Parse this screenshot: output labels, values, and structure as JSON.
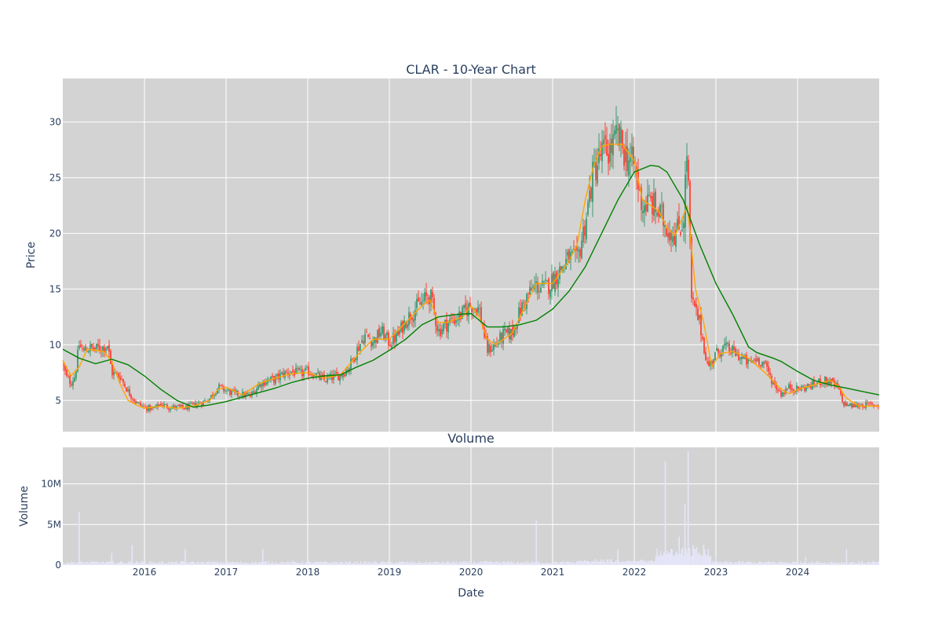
{
  "chart_data": [
    {
      "type": "candlestick",
      "title": "CLAR - 10-Year Chart",
      "ylabel": "Price",
      "ylim": [
        2.2,
        33.9
      ],
      "yticks": [
        5,
        10,
        15,
        20,
        25,
        30
      ],
      "grid": true,
      "legend": "none",
      "up_color": "#3d9970",
      "down_color": "#ff4136",
      "series": [
        {
          "type": "candlestick",
          "approx_close": [
            [
              2015.0,
              8.2
            ],
            [
              2015.05,
              7.0
            ],
            [
              2015.1,
              6.6
            ],
            [
              2015.15,
              7.2
            ],
            [
              2015.2,
              10.0
            ],
            [
              2015.25,
              9.4
            ],
            [
              2015.3,
              9.7
            ],
            [
              2015.4,
              9.6
            ],
            [
              2015.5,
              9.8
            ],
            [
              2015.55,
              10.0
            ],
            [
              2015.6,
              7.5
            ],
            [
              2015.7,
              7.2
            ],
            [
              2015.8,
              5.8
            ],
            [
              2015.9,
              4.8
            ],
            [
              2016.0,
              4.4
            ],
            [
              2016.1,
              4.2
            ],
            [
              2016.2,
              4.7
            ],
            [
              2016.3,
              4.4
            ],
            [
              2016.4,
              4.4
            ],
            [
              2016.5,
              4.3
            ],
            [
              2016.6,
              4.6
            ],
            [
              2016.7,
              4.8
            ],
            [
              2016.8,
              5.2
            ],
            [
              2016.9,
              6.2
            ],
            [
              2017.0,
              5.9
            ],
            [
              2017.1,
              5.6
            ],
            [
              2017.2,
              5.5
            ],
            [
              2017.3,
              5.4
            ],
            [
              2017.4,
              6.4
            ],
            [
              2017.5,
              6.8
            ],
            [
              2017.6,
              6.9
            ],
            [
              2017.7,
              7.4
            ],
            [
              2017.8,
              7.6
            ],
            [
              2017.9,
              7.4
            ],
            [
              2018.0,
              7.6
            ],
            [
              2018.1,
              7.3
            ],
            [
              2018.2,
              6.8
            ],
            [
              2018.3,
              7.1
            ],
            [
              2018.4,
              7.3
            ],
            [
              2018.5,
              7.9
            ],
            [
              2018.6,
              9.5
            ],
            [
              2018.7,
              10.9
            ],
            [
              2018.8,
              10.3
            ],
            [
              2018.9,
              11.2
            ],
            [
              2019.0,
              10.2
            ],
            [
              2019.1,
              10.8
            ],
            [
              2019.2,
              12.2
            ],
            [
              2019.3,
              13.1
            ],
            [
              2019.4,
              13.8
            ],
            [
              2019.5,
              14.5
            ],
            [
              2019.6,
              11.2
            ],
            [
              2019.7,
              11.9
            ],
            [
              2019.8,
              12.3
            ],
            [
              2019.9,
              12.8
            ],
            [
              2020.0,
              13.6
            ],
            [
              2020.1,
              13.2
            ],
            [
              2020.2,
              9.5
            ],
            [
              2020.3,
              10.0
            ],
            [
              2020.4,
              10.9
            ],
            [
              2020.5,
              11.0
            ],
            [
              2020.6,
              13.0
            ],
            [
              2020.7,
              14.5
            ],
            [
              2020.8,
              15.3
            ],
            [
              2020.9,
              15.0
            ],
            [
              2021.0,
              15.8
            ],
            [
              2021.1,
              16.8
            ],
            [
              2021.2,
              17.8
            ],
            [
              2021.3,
              17.5
            ],
            [
              2021.4,
              21.0
            ],
            [
              2021.5,
              25.5
            ],
            [
              2021.6,
              27.2
            ],
            [
              2021.7,
              27.5
            ],
            [
              2021.8,
              28.6
            ],
            [
              2021.9,
              27.0
            ],
            [
              2022.0,
              26.0
            ],
            [
              2022.1,
              22.5
            ],
            [
              2022.2,
              22.8
            ],
            [
              2022.3,
              21.8
            ],
            [
              2022.4,
              20.6
            ],
            [
              2022.5,
              20.0
            ],
            [
              2022.6,
              21.0
            ],
            [
              2022.65,
              28.0
            ],
            [
              2022.7,
              14.0
            ],
            [
              2022.8,
              12.0
            ],
            [
              2022.9,
              8.0
            ],
            [
              2023.0,
              9.2
            ],
            [
              2023.1,
              9.8
            ],
            [
              2023.2,
              9.4
            ],
            [
              2023.3,
              8.9
            ],
            [
              2023.4,
              8.3
            ],
            [
              2023.5,
              8.8
            ],
            [
              2023.6,
              8.2
            ],
            [
              2023.7,
              6.6
            ],
            [
              2023.8,
              5.6
            ],
            [
              2023.9,
              6.2
            ],
            [
              2024.0,
              6.0
            ],
            [
              2024.1,
              6.2
            ],
            [
              2024.2,
              6.4
            ],
            [
              2024.3,
              6.8
            ],
            [
              2024.4,
              6.7
            ],
            [
              2024.5,
              6.1
            ],
            [
              2024.55,
              4.8
            ],
            [
              2024.65,
              4.5
            ],
            [
              2024.8,
              4.6
            ],
            [
              2025.0,
              4.6
            ]
          ]
        },
        {
          "type": "line",
          "color": "#ffa500",
          "x": [
            2015.0,
            2015.1,
            2015.2,
            2015.3,
            2015.5,
            2015.6,
            2015.7,
            2015.8,
            2015.9,
            2016.0,
            2016.2,
            2016.4,
            2016.6,
            2016.8,
            2016.9,
            2017.0,
            2017.2,
            2017.4,
            2017.6,
            2017.8,
            2018.0,
            2018.2,
            2018.4,
            2018.6,
            2018.8,
            2019.0,
            2019.2,
            2019.4,
            2019.5,
            2019.6,
            2019.7,
            2019.9,
            2020.0,
            2020.1,
            2020.2,
            2020.3,
            2020.5,
            2020.7,
            2020.8,
            2021.0,
            2021.2,
            2021.3,
            2021.4,
            2021.5,
            2021.6,
            2021.7,
            2021.85,
            2022.0,
            2022.1,
            2022.2,
            2022.3,
            2022.4,
            2022.5,
            2022.65,
            2022.75,
            2022.85,
            2022.95,
            2023.05,
            2023.2,
            2023.4,
            2023.6,
            2023.8,
            2023.9,
            2024.0,
            2024.2,
            2024.4,
            2024.5,
            2024.6,
            2024.75,
            2025.0
          ],
          "values": [
            8.6,
            7.2,
            8.0,
            9.6,
            9.4,
            8.5,
            6.5,
            5.0,
            4.6,
            4.3,
            4.5,
            4.3,
            4.5,
            5.0,
            6.0,
            6.2,
            5.5,
            6.5,
            7.0,
            7.4,
            7.5,
            7.0,
            7.3,
            9.0,
            10.5,
            10.5,
            12.0,
            13.5,
            14.0,
            12.0,
            12.0,
            12.5,
            13.5,
            12.5,
            10.5,
            10.0,
            11.0,
            14.0,
            15.5,
            15.5,
            17.5,
            19.0,
            23.0,
            26.0,
            27.8,
            28.0,
            28.0,
            26.5,
            23.0,
            22.5,
            22.0,
            20.5,
            19.8,
            22.5,
            15.0,
            12.0,
            8.0,
            9.2,
            9.4,
            8.8,
            7.5,
            6.0,
            5.6,
            6.0,
            6.4,
            6.8,
            6.3,
            5.2,
            4.5,
            4.5
          ]
        },
        {
          "type": "line",
          "color": "#008000",
          "x": [
            2015.0,
            2015.2,
            2015.4,
            2015.6,
            2015.8,
            2016.0,
            2016.2,
            2016.4,
            2016.6,
            2016.8,
            2017.0,
            2017.2,
            2017.4,
            2017.6,
            2017.8,
            2018.0,
            2018.2,
            2018.4,
            2018.6,
            2018.8,
            2019.0,
            2019.2,
            2019.4,
            2019.6,
            2019.8,
            2020.0,
            2020.2,
            2020.4,
            2020.6,
            2020.8,
            2021.0,
            2021.2,
            2021.4,
            2021.6,
            2021.8,
            2022.0,
            2022.2,
            2022.3,
            2022.4,
            2022.6,
            2022.8,
            2023.0,
            2023.2,
            2023.4,
            2023.5,
            2023.7,
            2023.8,
            2024.0,
            2024.2,
            2024.4,
            2024.6,
            2024.8,
            2025.0
          ],
          "values": [
            9.6,
            8.8,
            8.3,
            8.7,
            8.2,
            7.2,
            6.0,
            5.0,
            4.4,
            4.6,
            4.9,
            5.3,
            5.7,
            6.1,
            6.6,
            7.0,
            7.2,
            7.3,
            8.0,
            8.6,
            9.5,
            10.5,
            11.8,
            12.5,
            12.7,
            12.8,
            11.6,
            11.6,
            11.8,
            12.2,
            13.2,
            14.8,
            17.0,
            20.0,
            23.0,
            25.5,
            26.1,
            26.0,
            25.5,
            23.0,
            19.0,
            15.5,
            12.8,
            9.8,
            9.3,
            8.8,
            8.5,
            7.6,
            6.8,
            6.4,
            6.1,
            5.8,
            5.5
          ]
        }
      ]
    },
    {
      "type": "bar",
      "title": "Volume",
      "xlabel": "Date",
      "ylabel": "Volume",
      "ylim": [
        0,
        14.5
      ],
      "yticks": [
        0,
        5,
        10
      ],
      "ytick_labels": [
        "0",
        "5M",
        "10M"
      ],
      "xlim": [
        2015.0,
        2025.0
      ],
      "xticks": [
        2016,
        2017,
        2018,
        2019,
        2020,
        2021,
        2022,
        2023,
        2024
      ],
      "xtick_labels": [
        "2016",
        "2017",
        "2018",
        "2019",
        "2020",
        "2021",
        "2022",
        "2023",
        "2024"
      ],
      "bar_color": "#e6e6fa",
      "unit": "millions of shares",
      "spikes": [
        [
          2015.2,
          6.5
        ],
        [
          2015.6,
          1.5
        ],
        [
          2015.85,
          2.5
        ],
        [
          2016.5,
          2.0
        ],
        [
          2017.45,
          2.0
        ],
        [
          2020.8,
          5.5
        ],
        [
          2021.8,
          2.0
        ],
        [
          2022.38,
          12.8
        ],
        [
          2022.45,
          2.0
        ],
        [
          2022.55,
          3.5
        ],
        [
          2022.62,
          7.5
        ],
        [
          2022.66,
          14.0
        ],
        [
          2022.72,
          2.5
        ],
        [
          2022.85,
          2.5
        ],
        [
          2023.0,
          1.0
        ],
        [
          2024.1,
          1.0
        ],
        [
          2024.6,
          2.0
        ]
      ]
    }
  ]
}
